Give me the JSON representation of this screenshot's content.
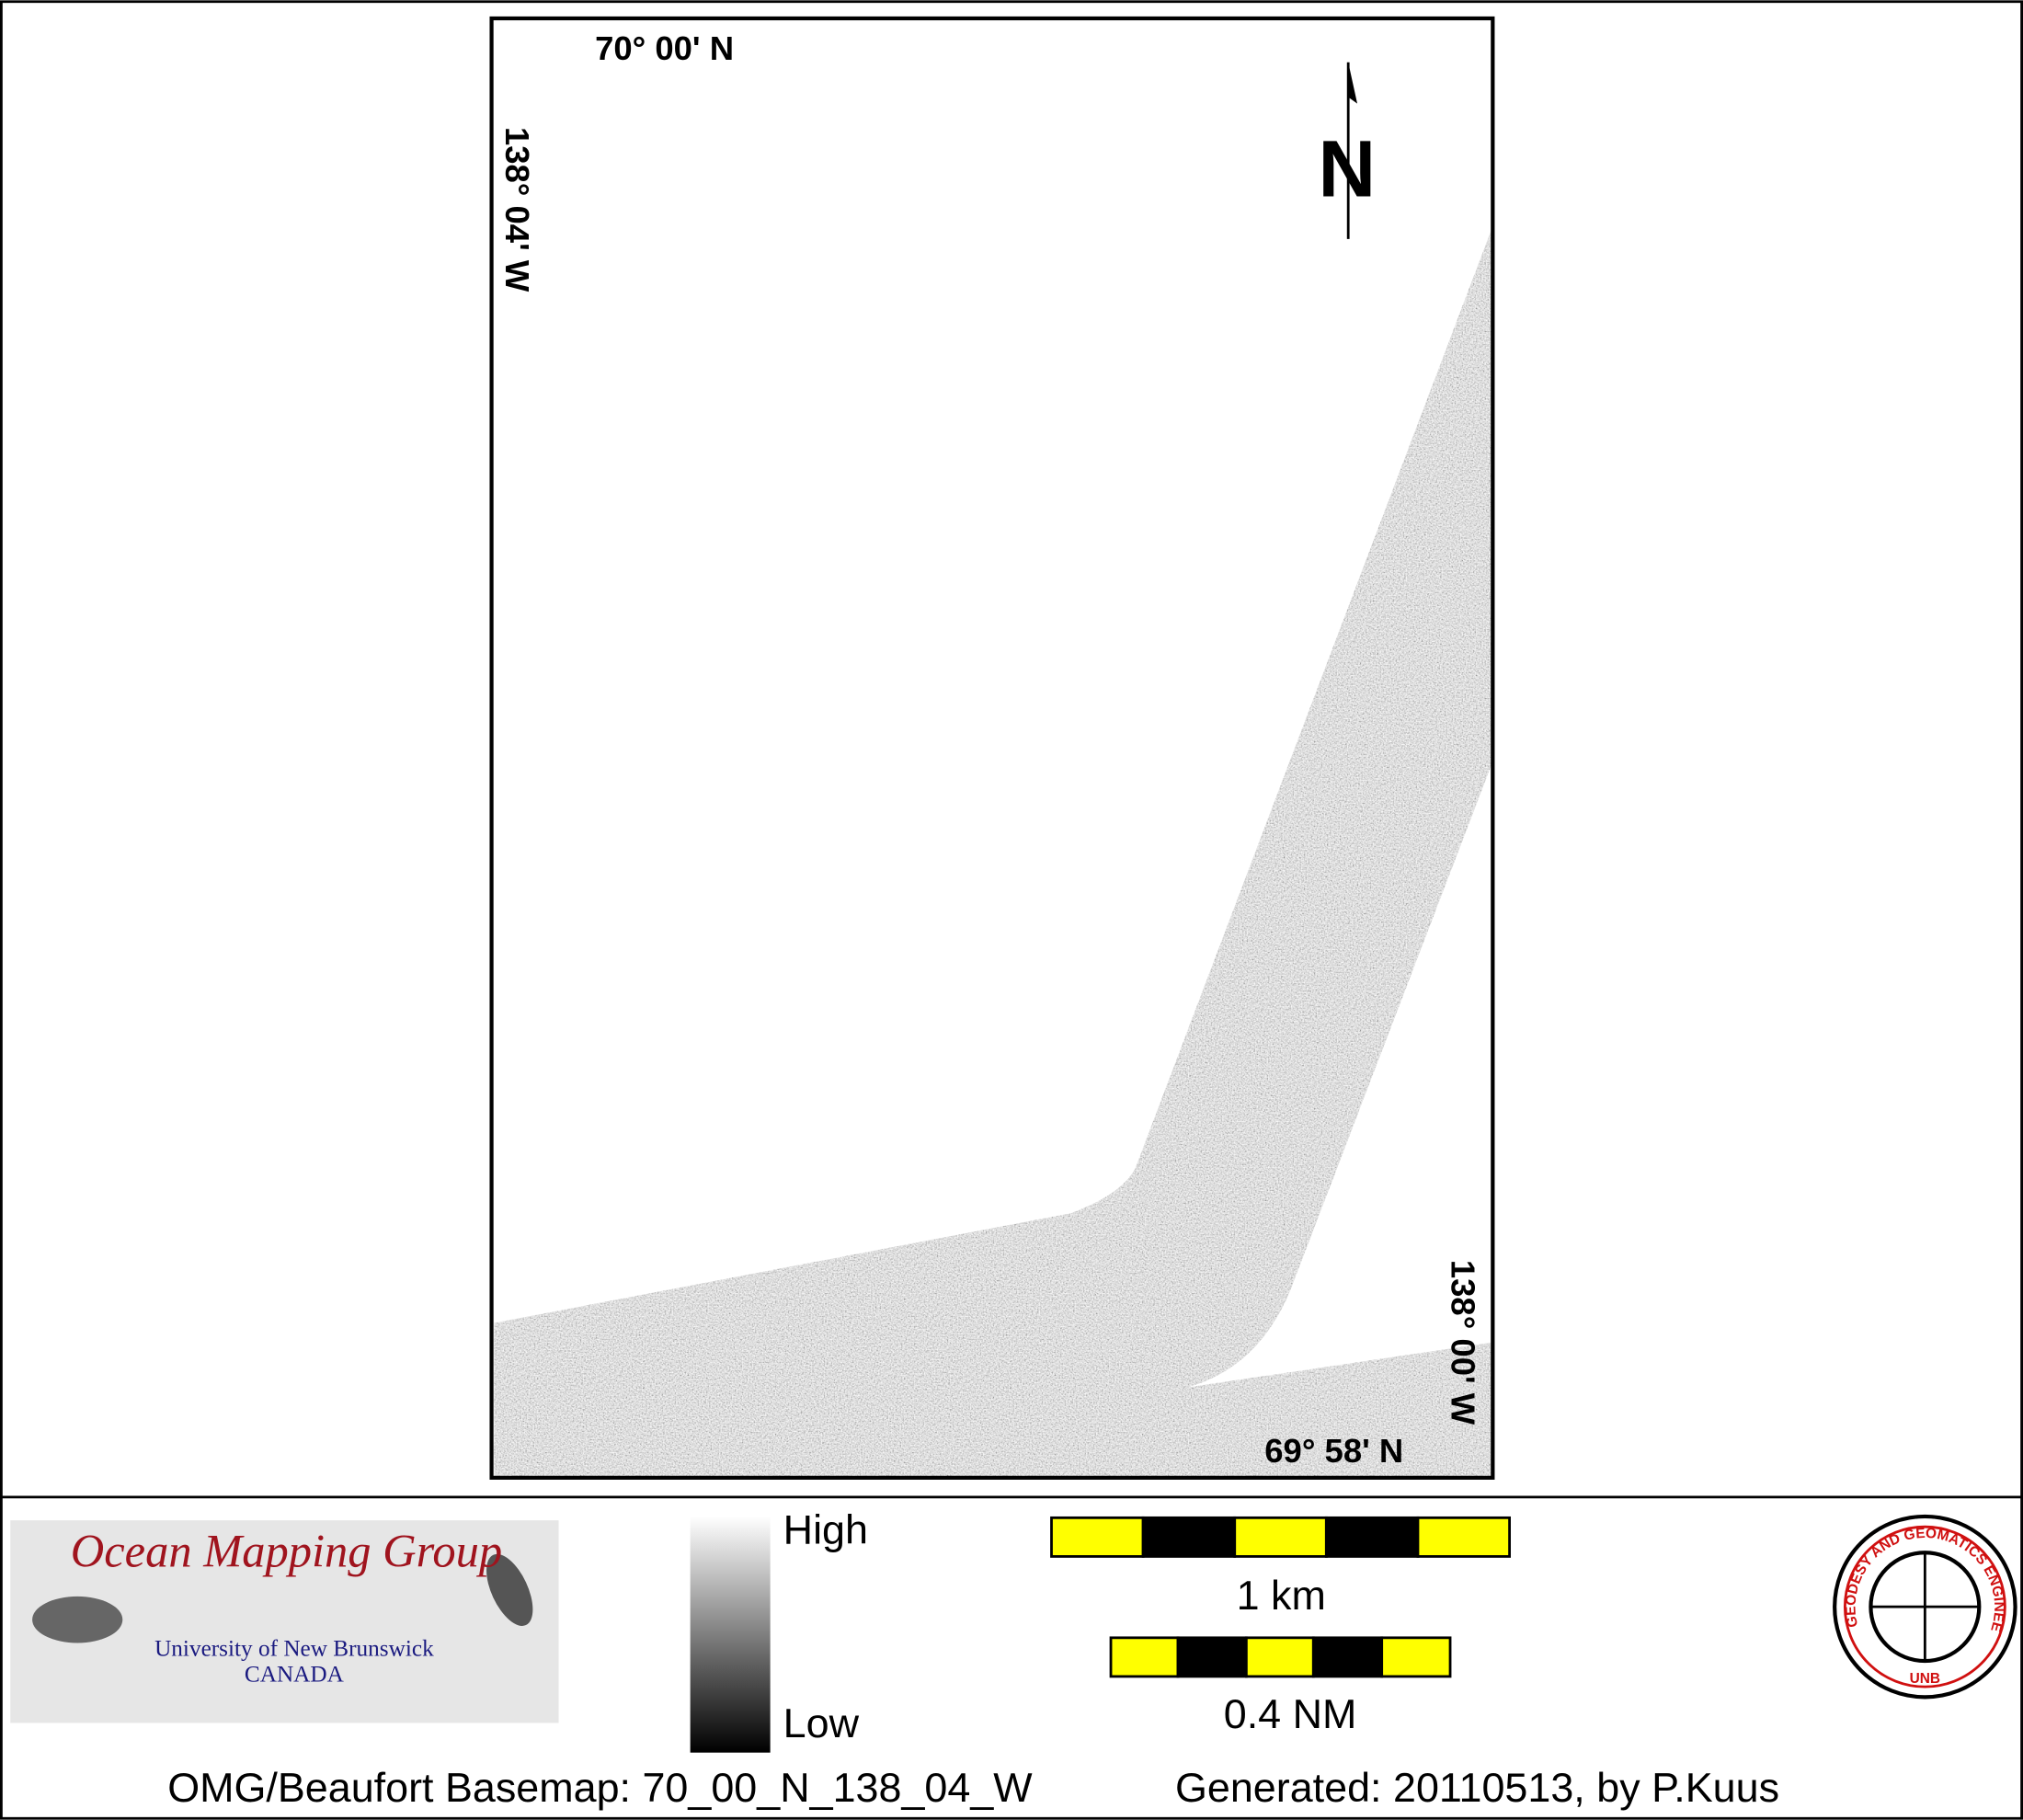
{
  "map": {
    "labels": {
      "top_lat": "70° 00' N",
      "left_lon": "138° 04' W",
      "right_lon": "138° 00' W",
      "bottom_lat": "69° 58' N",
      "north": "N"
    },
    "legend": {
      "high": "High",
      "low": "Low"
    },
    "scale_bars": [
      {
        "label": "1 km"
      },
      {
        "label": "0.4 NM"
      }
    ],
    "logo": {
      "title": "Ocean Mapping Group",
      "university": "University of New Brunswick",
      "country": "CANADA"
    },
    "seal": {
      "ring": "GEODESY AND GEOMATICS ENGINEERING",
      "name": "UNB"
    },
    "footer": {
      "basemap": "OMG/Beaufort Basemap: 70_00_N_138_04_W",
      "generated": "Generated: 20110513, by P.Kuus"
    }
  }
}
